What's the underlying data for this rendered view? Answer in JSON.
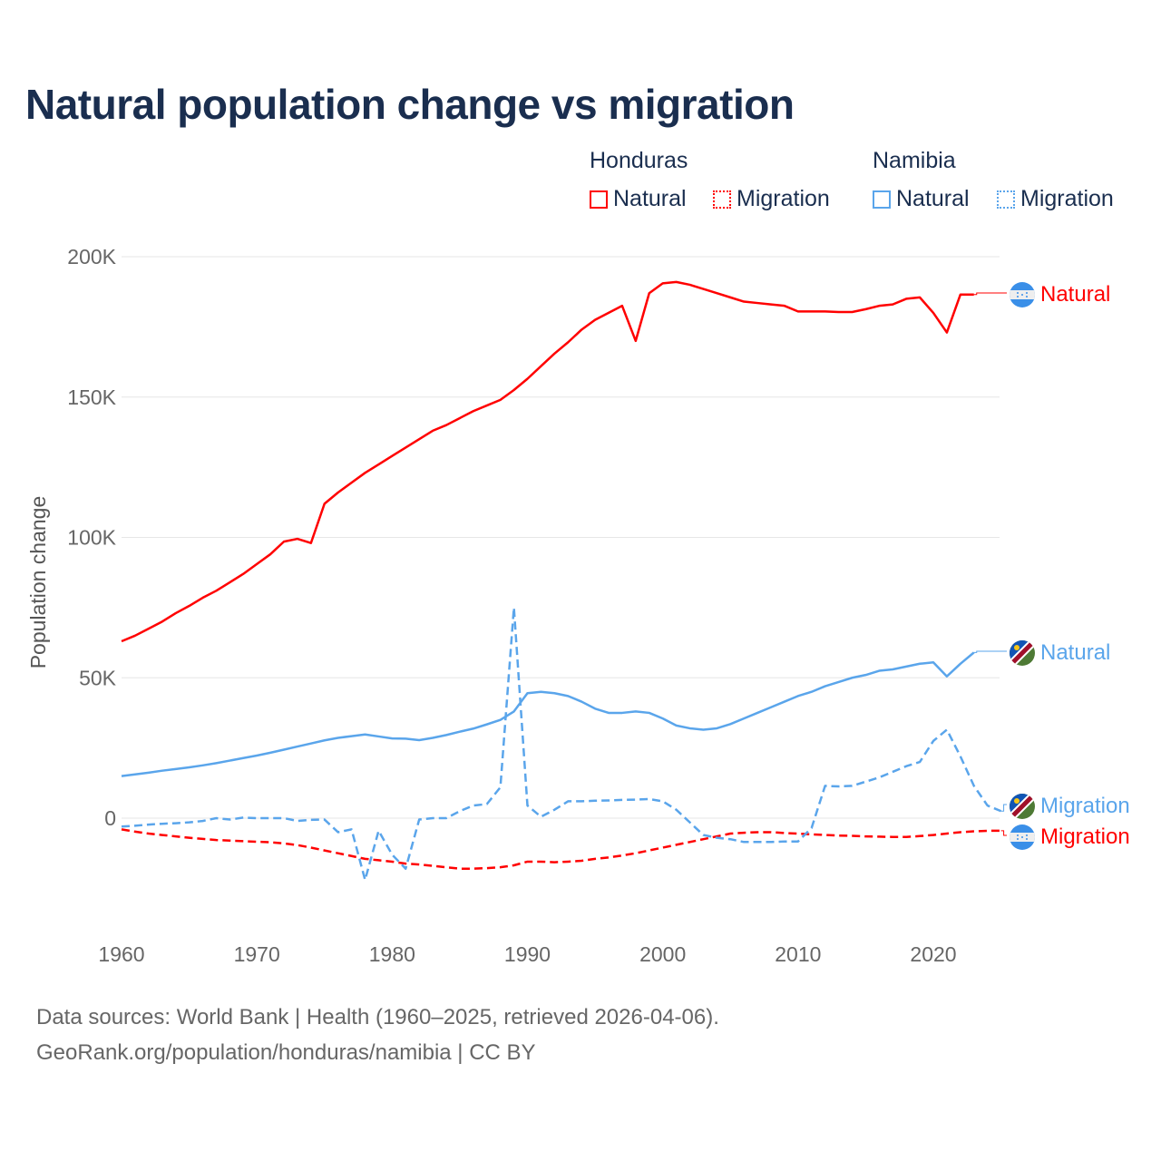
{
  "title": "Natural population change vs migration",
  "legend": {
    "groups": [
      {
        "name": "Honduras",
        "items": [
          {
            "label": "Natural",
            "style": "solid",
            "color": "#ff0000"
          },
          {
            "label": "Migration",
            "style": "dotted",
            "color": "#ff0000"
          }
        ]
      },
      {
        "name": "Namibia",
        "items": [
          {
            "label": "Natural",
            "style": "solid",
            "color": "#5aa5eb"
          },
          {
            "label": "Migration",
            "style": "dotted",
            "color": "#5aa5eb"
          }
        ]
      }
    ]
  },
  "chart_data": {
    "type": "line",
    "ylabel": "Population change",
    "xlabel": "",
    "xlim": [
      1960,
      2025
    ],
    "ylim": [
      -40000,
      200000
    ],
    "x_ticks": [
      1960,
      1970,
      1980,
      1990,
      2000,
      2010,
      2020
    ],
    "y_ticks": [
      {
        "value": 0,
        "label": "0"
      },
      {
        "value": 50000,
        "label": "50K"
      },
      {
        "value": 100000,
        "label": "100K"
      },
      {
        "value": 150000,
        "label": "150K"
      },
      {
        "value": 200000,
        "label": "200K"
      }
    ],
    "grid": true,
    "series": [
      {
        "name": "Honduras Natural",
        "end_label": "Natural",
        "country": "Honduras",
        "color": "#ff0000",
        "dash": false,
        "start": 1960,
        "values": [
          63000,
          65000,
          67500,
          70000,
          73000,
          75600,
          78500,
          81000,
          84000,
          87000,
          90500,
          94000,
          98500,
          99500,
          98000,
          112000,
          116000,
          119500,
          123000,
          126000,
          129000,
          132000,
          135000,
          138000,
          140000,
          142500,
          145000,
          147000,
          149000,
          152500,
          156500,
          161000,
          165500,
          169500,
          174000,
          177500,
          180000,
          182500,
          170000,
          187000,
          190500,
          191000,
          190000,
          188500,
          187000,
          185500,
          184000,
          183500,
          183000,
          182500,
          180500,
          180500,
          180500,
          180300,
          180300,
          181300,
          182500,
          183000,
          185000,
          185500,
          180000,
          173000,
          186500,
          186500
        ]
      },
      {
        "name": "Honduras Migration",
        "end_label": "Migration",
        "country": "Honduras",
        "color": "#ff0000",
        "dash": true,
        "start": 1960,
        "values": [
          -4000,
          -4800,
          -5500,
          -6000,
          -6500,
          -7000,
          -7400,
          -7800,
          -8000,
          -8200,
          -8400,
          -8600,
          -9000,
          -9600,
          -10500,
          -11500,
          -12500,
          -13500,
          -14500,
          -15000,
          -15500,
          -16200,
          -16500,
          -17000,
          -17500,
          -18000,
          -18000,
          -17800,
          -17500,
          -16800,
          -15500,
          -15500,
          -15700,
          -15500,
          -15200,
          -14500,
          -14000,
          -13300,
          -12500,
          -11500,
          -10500,
          -9500,
          -8500,
          -7500,
          -6500,
          -5500,
          -5200,
          -5000,
          -5000,
          -5300,
          -5500,
          -5800,
          -6000,
          -6200,
          -6300,
          -6500,
          -6600,
          -6700,
          -6700,
          -6400,
          -6000,
          -5500,
          -5000,
          -4700,
          -4500,
          -4500
        ]
      },
      {
        "name": "Namibia Natural",
        "end_label": "Natural",
        "country": "Namibia",
        "color": "#5aa5eb",
        "dash": false,
        "start": 1960,
        "values": [
          15000,
          15600,
          16200,
          16900,
          17500,
          18100,
          18800,
          19600,
          20500,
          21400,
          22300,
          23300,
          24400,
          25500,
          26600,
          27700,
          28600,
          29200,
          29800,
          29100,
          28400,
          28300,
          27800,
          28600,
          29600,
          30800,
          31900,
          33400,
          35000,
          38000,
          44500,
          45000,
          44500,
          43500,
          41500,
          39000,
          37500,
          37500,
          38000,
          37500,
          35500,
          33000,
          32000,
          31500,
          32000,
          33500,
          35500,
          37500,
          39500,
          41500,
          43500,
          45000,
          47000,
          48500,
          50000,
          51000,
          52500,
          53000,
          54000,
          55000,
          55500,
          50500,
          55000,
          59000
        ]
      },
      {
        "name": "Namibia Migration",
        "end_label": "Migration",
        "country": "Namibia",
        "color": "#5aa5eb",
        "dash": true,
        "start": 1960,
        "values": [
          -3000,
          -2700,
          -2300,
          -2000,
          -1800,
          -1500,
          -1000,
          0,
          -500,
          200,
          0,
          0,
          0,
          -1000,
          -600,
          -500,
          -5000,
          -4000,
          -22000,
          -4500,
          -13000,
          -18000,
          -500,
          0,
          0,
          2500,
          4500,
          5000,
          11000,
          75000,
          4500,
          500,
          3000,
          6000,
          6000,
          6200,
          6300,
          6500,
          6600,
          6800,
          6000,
          3000,
          -1500,
          -6000,
          -7000,
          -7500,
          -8500,
          -8500,
          -8500,
          -8300,
          -8300,
          -3500,
          11500,
          11300,
          11500,
          13000,
          14500,
          16500,
          18500,
          20000,
          27500,
          31500,
          22000,
          11500,
          4500,
          2500
        ]
      }
    ]
  },
  "footer": {
    "line1": "Data sources: World Bank | Health (1960–2025, retrieved 2026-04-06).",
    "line2": "GeoRank.org/population/honduras/namibia | CC BY"
  }
}
